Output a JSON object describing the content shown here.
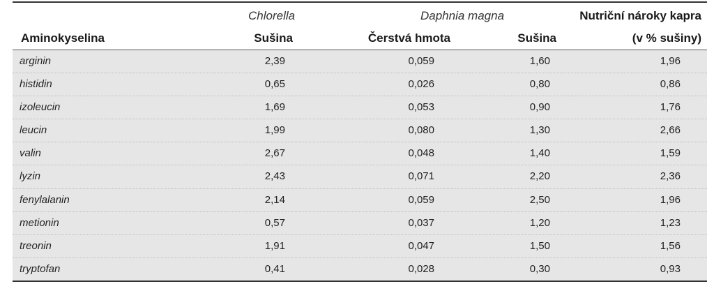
{
  "table": {
    "headers": {
      "group_chlorella": "Chlorella",
      "group_daphnia": "Daphnia magna",
      "group_nutri": "Nutriční nároky kapra",
      "col_amino": "Aminokyselina",
      "col_chlorella_susina": "Sušina",
      "col_daphnia_cerstva": "Čerstvá hmota",
      "col_daphnia_susina": "Sušina",
      "col_nutri_unit": "(v % sušiny)"
    },
    "rows": [
      {
        "name": "arginin",
        "chlorella": "2,39",
        "daphnia_fresh": "0,059",
        "daphnia_dry": "1,60",
        "carp": "1,96"
      },
      {
        "name": "histidin",
        "chlorella": "0,65",
        "daphnia_fresh": "0,026",
        "daphnia_dry": "0,80",
        "carp": "0,86"
      },
      {
        "name": "izoleucin",
        "chlorella": "1,69",
        "daphnia_fresh": "0,053",
        "daphnia_dry": "0,90",
        "carp": "1,76"
      },
      {
        "name": "leucin",
        "chlorella": "1,99",
        "daphnia_fresh": "0,080",
        "daphnia_dry": "1,30",
        "carp": "2,66"
      },
      {
        "name": "valin",
        "chlorella": "2,67",
        "daphnia_fresh": "0,048",
        "daphnia_dry": "1,40",
        "carp": "1,59"
      },
      {
        "name": "lyzin",
        "chlorella": "2,43",
        "daphnia_fresh": "0,071",
        "daphnia_dry": "2,20",
        "carp": "2,36"
      },
      {
        "name": "fenylalanin",
        "chlorella": "2,14",
        "daphnia_fresh": "0,059",
        "daphnia_dry": "2,50",
        "carp": "1,96"
      },
      {
        "name": "metionin",
        "chlorella": "0,57",
        "daphnia_fresh": "0,037",
        "daphnia_dry": "1,20",
        "carp": "1,23"
      },
      {
        "name": "treonin",
        "chlorella": "1,91",
        "daphnia_fresh": "0,047",
        "daphnia_dry": "1,50",
        "carp": "1,56"
      },
      {
        "name": "tryptofan",
        "chlorella": "0,41",
        "daphnia_fresh": "0,028",
        "daphnia_dry": "0,30",
        "carp": "0,93"
      }
    ]
  }
}
